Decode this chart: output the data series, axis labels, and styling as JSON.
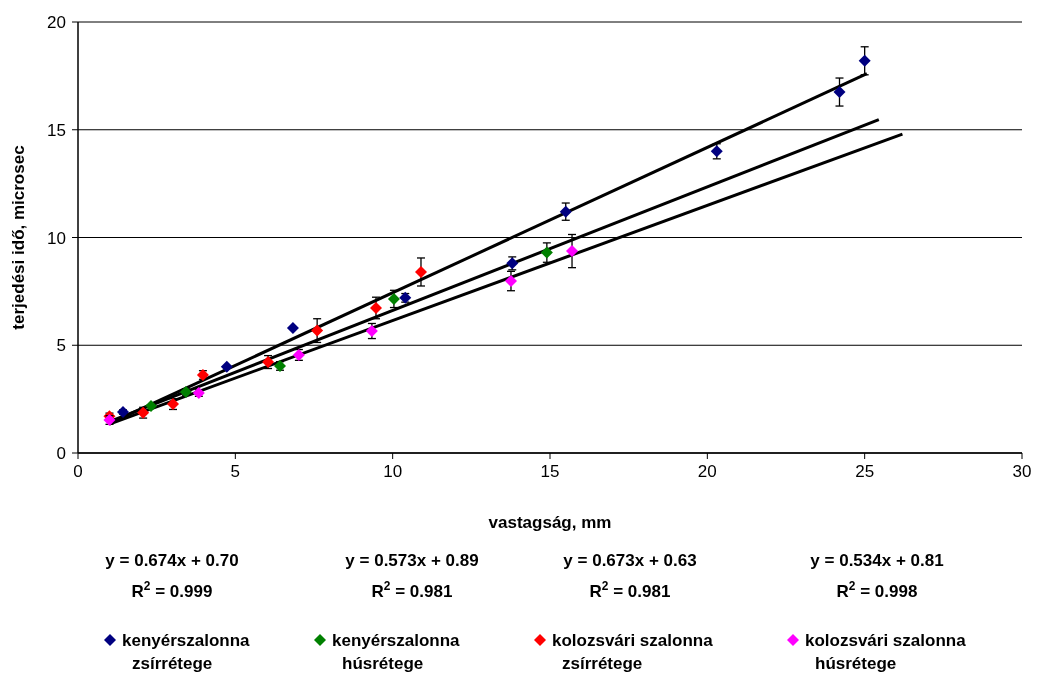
{
  "chart_data": {
    "type": "scatter",
    "xlabel": "vastagság, mm",
    "ylabel": "terjedési idő, microsec",
    "xlim": [
      0,
      30
    ],
    "xticks": [
      0,
      5,
      10,
      15,
      20,
      25,
      30
    ],
    "ylim": [
      0,
      20
    ],
    "yticks": [
      0,
      5,
      10,
      15,
      20
    ],
    "grid": "y",
    "legend": "bottom",
    "marker": "diamond",
    "series": [
      {
        "name": "kenyérszalonna zsírrétege",
        "color": "#000080",
        "x": [
          1.43,
          4.73,
          6.83,
          10.4,
          13.8,
          15.5,
          20.3,
          24.2,
          25.0
        ],
        "values": [
          1.9,
          4.0,
          5.8,
          7.2,
          8.8,
          11.2,
          14.0,
          16.75,
          18.2
        ],
        "errors": [
          0.1,
          null,
          null,
          0.2,
          0.3,
          0.4,
          0.35,
          0.65,
          0.65
        ]
      },
      {
        "name": "kenyérszalonna húsrétege",
        "color": "#008000",
        "x": [
          2.32,
          3.43,
          6.42,
          10.04,
          14.9
        ],
        "values": [
          2.18,
          2.83,
          4.04,
          7.15,
          9.3
        ],
        "errors": [
          null,
          0.15,
          0.2,
          0.4,
          0.45
        ]
      },
      {
        "name": "kolozsvári szalonna zsírrétege",
        "color": "#ff0000",
        "x": [
          1.0,
          2.07,
          3.02,
          3.97,
          6.04,
          7.6,
          9.47,
          10.9
        ],
        "values": [
          1.7,
          1.87,
          2.27,
          3.62,
          4.22,
          5.68,
          6.73,
          8.4
        ],
        "errors": [
          0.15,
          0.25,
          0.25,
          0.2,
          0.3,
          0.55,
          0.5,
          0.65
        ]
      },
      {
        "name": "kolozsvári szalonna húsrétege",
        "color": "#ff00ff",
        "x": [
          1.0,
          3.84,
          7.02,
          9.34,
          13.76,
          15.7
        ],
        "values": [
          1.53,
          2.78,
          4.55,
          5.66,
          7.98,
          9.37
        ],
        "errors": [
          0.2,
          0.15,
          0.25,
          0.35,
          0.45,
          0.77
        ]
      },
      {
        "type": "line",
        "color": "#000000",
        "marker": "none",
        "x": [
          1,
          25.07
        ],
        "values": [
          1.37,
          17.6
        ]
      },
      {
        "type": "line",
        "color": "#000000",
        "marker": "none",
        "x": [
          1,
          25.45
        ],
        "values": [
          1.46,
          15.47
        ]
      },
      {
        "type": "line",
        "color": "#000000",
        "marker": "none",
        "x": [
          1,
          26.2
        ],
        "values": [
          1.34,
          14.8
        ]
      }
    ],
    "annotations": [
      "y = 0.674x + 0.70",
      "R$^{2}$ = 0.999",
      "y = 0.573x + 0.89",
      "R$^{2}$ = 0.981",
      "y = 0.673x + 0.63",
      "R$^{2}$ = 0.981",
      "y = 0.534x + 0.81",
      "R$^{2}$ = 0.998"
    ]
  }
}
